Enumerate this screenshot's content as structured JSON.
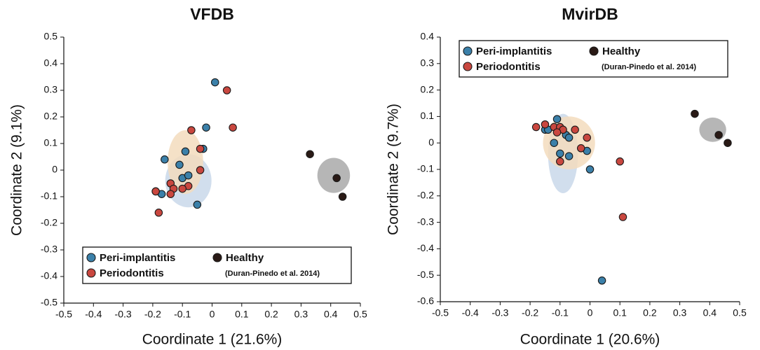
{
  "chart_data": [
    {
      "type": "scatter",
      "title": "VFDB",
      "xlabel": "Coordinate 1 (21.6%)",
      "ylabel": "Coordinate 2 (9.1%)",
      "xlim": [
        -0.5,
        0.5
      ],
      "ylim": [
        -0.5,
        0.5
      ],
      "xticks": [
        -0.5,
        -0.4,
        -0.3,
        -0.2,
        -0.1,
        0,
        0.1,
        0.2,
        0.3,
        0.4,
        0.5
      ],
      "yticks": [
        -0.5,
        -0.4,
        -0.3,
        -0.2,
        -0.1,
        0,
        0.1,
        0.2,
        0.3,
        0.4,
        0.5
      ],
      "legend": "lower left",
      "legend_note": "(Duran-Pinedo et al. 2014)",
      "series": [
        {
          "name": "Peri-implantitis",
          "color": "#3b80a9",
          "ellipse_color": "#c9d8ea",
          "x": [
            0.01,
            -0.02,
            -0.03,
            -0.09,
            -0.16,
            -0.11,
            -0.1,
            -0.08,
            -0.17,
            -0.05
          ],
          "values": [
            0.33,
            0.16,
            0.08,
            0.07,
            0.04,
            0.02,
            -0.03,
            -0.02,
            -0.09,
            -0.13
          ],
          "ellipse": {
            "x": -0.08,
            "y": -0.04,
            "rx": 0.078,
            "ry": 0.1
          }
        },
        {
          "name": "Periodontitis",
          "color": "#c9473f",
          "ellipse_color": "#f3dcbd",
          "x": [
            0.05,
            0.07,
            -0.07,
            -0.04,
            -0.04,
            -0.08,
            -0.14,
            -0.13,
            -0.1,
            -0.14,
            -0.19,
            -0.19,
            -0.18
          ],
          "values": [
            0.3,
            0.16,
            0.15,
            0.08,
            0.0,
            -0.06,
            -0.05,
            -0.07,
            -0.07,
            -0.09,
            -0.08,
            -0.08,
            -0.16
          ],
          "ellipse": {
            "x": -0.09,
            "y": 0.03,
            "rx": 0.06,
            "ry": 0.12
          }
        },
        {
          "name": "Healthy",
          "color": "#2a1a16",
          "ellipse_color": "#a9a9a9",
          "x": [
            0.33,
            0.42,
            0.44
          ],
          "values": [
            0.06,
            -0.03,
            -0.1
          ],
          "ellipse": {
            "x": 0.41,
            "y": -0.02,
            "rx": 0.055,
            "ry": 0.066
          }
        }
      ]
    },
    {
      "type": "scatter",
      "title": "MvirDB",
      "xlabel": "Coordinate 1 (20.6%)",
      "ylabel": "Coordinate 2 (9.7%)",
      "xlim": [
        -0.5,
        0.5
      ],
      "ylim": [
        -0.6,
        0.4
      ],
      "xticks": [
        -0.5,
        -0.4,
        -0.3,
        -0.2,
        -0.1,
        0,
        0.1,
        0.2,
        0.3,
        0.4,
        0.5
      ],
      "yticks": [
        -0.6,
        -0.5,
        -0.4,
        -0.3,
        -0.2,
        -0.1,
        0,
        0.1,
        0.2,
        0.3,
        0.4
      ],
      "legend": "upper left",
      "legend_note": "(Duran-Pinedo et al. 2014)",
      "series": [
        {
          "name": "Peri-implantitis",
          "color": "#3b80a9",
          "ellipse_color": "#c9d8ea",
          "x": [
            -0.11,
            -0.15,
            -0.14,
            -0.08,
            -0.07,
            -0.12,
            -0.1,
            -0.07,
            -0.01,
            0.0,
            0.04
          ],
          "values": [
            0.09,
            0.05,
            0.05,
            0.03,
            0.02,
            0.0,
            -0.04,
            -0.05,
            -0.03,
            -0.1,
            -0.52
          ],
          "ellipse": {
            "x": -0.09,
            "y": -0.04,
            "rx": 0.05,
            "ry": 0.15
          }
        },
        {
          "name": "Periodontitis",
          "color": "#c9473f",
          "ellipse_color": "#f3dcbd",
          "x": [
            -0.18,
            -0.15,
            -0.12,
            -0.1,
            -0.09,
            -0.11,
            -0.05,
            -0.01,
            -0.03,
            -0.1,
            0.1,
            0.11
          ],
          "values": [
            0.06,
            0.07,
            0.06,
            0.06,
            0.05,
            0.04,
            0.05,
            0.02,
            -0.02,
            -0.07,
            -0.07,
            -0.28
          ],
          "ellipse": {
            "x": -0.07,
            "y": 0.0,
            "rx": 0.087,
            "ry": 0.1
          }
        },
        {
          "name": "Healthy",
          "color": "#2a1a16",
          "ellipse_color": "#a9a9a9",
          "x": [
            0.35,
            0.43,
            0.46
          ],
          "values": [
            0.11,
            0.03,
            0.0
          ],
          "ellipse": {
            "x": 0.41,
            "y": 0.05,
            "rx": 0.045,
            "ry": 0.046
          }
        }
      ]
    }
  ]
}
